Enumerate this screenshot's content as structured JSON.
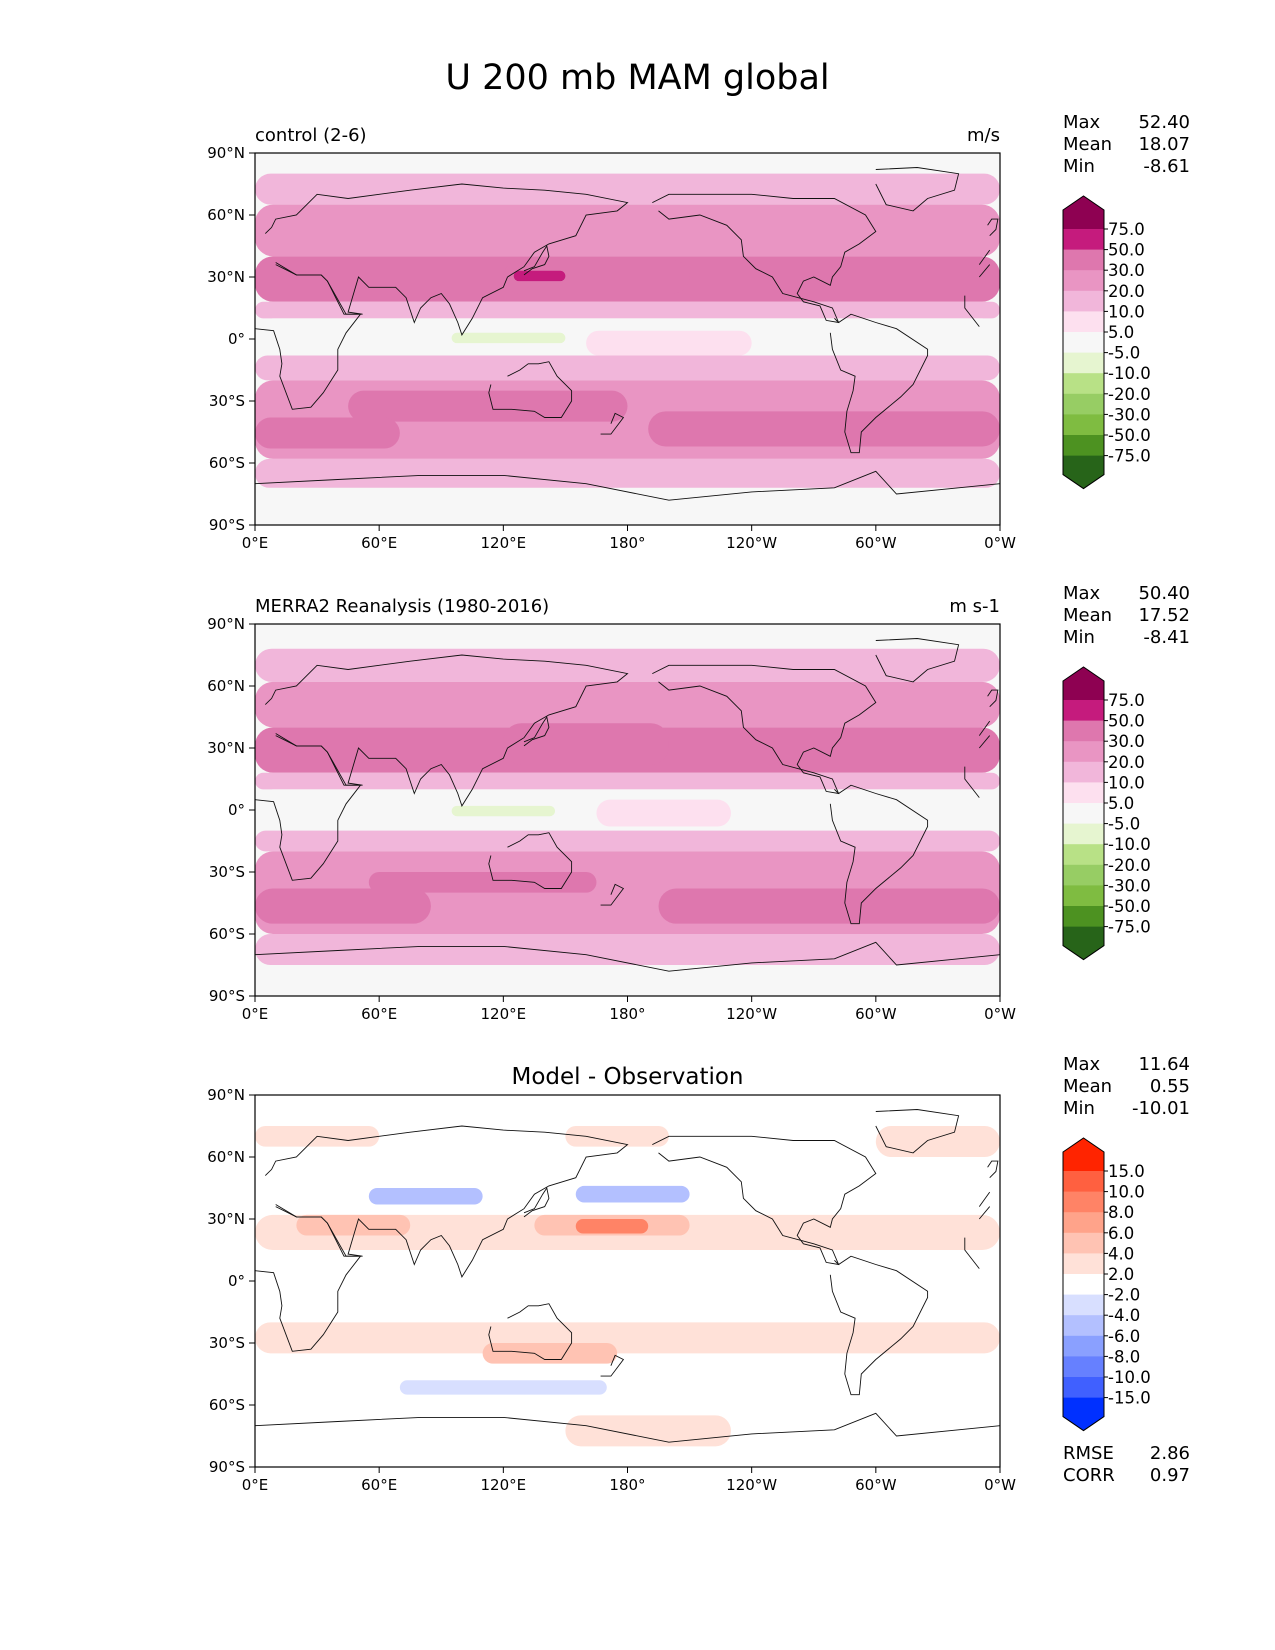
{
  "title": "U 200 mb MAM global",
  "axes": {
    "lat_ticks": [
      "90°N",
      "60°N",
      "30°N",
      "0°",
      "30°S",
      "60°S",
      "90°S"
    ],
    "lon_ticks": [
      "0°E",
      "60°E",
      "120°E",
      "180°",
      "120°W",
      "60°W",
      "0°W"
    ]
  },
  "chart_data": [
    {
      "type": "heatmap",
      "title_left": "control (2-6)",
      "title_right": "m/s",
      "stats": {
        "labels": [
          "Max",
          "Mean",
          "Min"
        ],
        "values": [
          "52.40",
          "18.07",
          "-8.61"
        ]
      },
      "colorbar": {
        "levels": [
          "75.0",
          "50.0",
          "30.0",
          "20.0",
          "10.0",
          "5.0",
          "-5.0",
          "-10.0",
          "-20.0",
          "-30.0",
          "-50.0",
          "-75.0"
        ],
        "colors": [
          "#8e0152",
          "#c51b7d",
          "#de77ae",
          "#e995c3",
          "#f1b6da",
          "#fde0ef",
          "#f7f7f7",
          "#e6f5d0",
          "#b8e186",
          "#97cd64",
          "#7fbc41",
          "#4d9221",
          "#276419"
        ]
      },
      "bands": [
        {
          "lat": [
            65,
            80
          ],
          "lon": [
            0,
            360
          ],
          "level": "10.0"
        },
        {
          "lat": [
            40,
            65
          ],
          "lon": [
            0,
            360
          ],
          "level": "20.0"
        },
        {
          "lat": [
            18,
            40
          ],
          "lon": [
            0,
            360
          ],
          "level": "30.0"
        },
        {
          "lat": [
            10,
            18
          ],
          "lon": [
            0,
            360
          ],
          "level": "10.0"
        },
        {
          "lat": [
            -8,
            10
          ],
          "lon": [
            0,
            360
          ],
          "level": "-5.0"
        },
        {
          "lat": [
            -20,
            -8
          ],
          "lon": [
            0,
            360
          ],
          "level": "10.0"
        },
        {
          "lat": [
            -58,
            -20
          ],
          "lon": [
            0,
            360
          ],
          "level": "20.0"
        },
        {
          "lat": [
            -40,
            -25
          ],
          "lon": [
            45,
            180
          ],
          "level": "30.0"
        },
        {
          "lat": [
            -53,
            -38
          ],
          "lon": [
            0,
            70
          ],
          "level": "30.0"
        },
        {
          "lat": [
            -52,
            -35
          ],
          "lon": [
            190,
            360
          ],
          "level": "30.0"
        },
        {
          "lat": [
            -72,
            -58
          ],
          "lon": [
            0,
            360
          ],
          "level": "10.0"
        },
        {
          "lat": [
            22,
            38
          ],
          "lon": [
            120,
            210
          ],
          "level": "30.0"
        },
        {
          "lat": [
            28,
            33
          ],
          "lon": [
            125,
            150
          ],
          "level": "50.0"
        },
        {
          "lat": [
            -2,
            3
          ],
          "lon": [
            95,
            150
          ],
          "level": "-10.0"
        },
        {
          "lat": [
            -8,
            4
          ],
          "lon": [
            160,
            240
          ],
          "level": "5.0"
        }
      ]
    },
    {
      "type": "heatmap",
      "title_left": "MERRA2 Reanalysis (1980-2016)",
      "title_right": "m s-1",
      "stats": {
        "labels": [
          "Max",
          "Mean",
          "Min"
        ],
        "values": [
          "50.40",
          "17.52",
          "-8.41"
        ]
      },
      "colorbar": {
        "levels": [
          "75.0",
          "50.0",
          "30.0",
          "20.0",
          "10.0",
          "5.0",
          "-5.0",
          "-10.0",
          "-20.0",
          "-30.0",
          "-50.0",
          "-75.0"
        ],
        "colors": [
          "#8e0152",
          "#c51b7d",
          "#de77ae",
          "#e995c3",
          "#f1b6da",
          "#fde0ef",
          "#f7f7f7",
          "#e6f5d0",
          "#b8e186",
          "#97cd64",
          "#7fbc41",
          "#4d9221",
          "#276419"
        ]
      },
      "bands": [
        {
          "lat": [
            62,
            78
          ],
          "lon": [
            0,
            360
          ],
          "level": "10.0"
        },
        {
          "lat": [
            40,
            62
          ],
          "lon": [
            0,
            360
          ],
          "level": "20.0"
        },
        {
          "lat": [
            18,
            40
          ],
          "lon": [
            0,
            360
          ],
          "level": "30.0"
        },
        {
          "lat": [
            10,
            18
          ],
          "lon": [
            0,
            360
          ],
          "level": "10.0"
        },
        {
          "lat": [
            -10,
            10
          ],
          "lon": [
            0,
            360
          ],
          "level": "-5.0"
        },
        {
          "lat": [
            -20,
            -10
          ],
          "lon": [
            0,
            360
          ],
          "level": "10.0"
        },
        {
          "lat": [
            -60,
            -20
          ],
          "lon": [
            0,
            360
          ],
          "level": "20.0"
        },
        {
          "lat": [
            -40,
            -30
          ],
          "lon": [
            55,
            165
          ],
          "level": "30.0"
        },
        {
          "lat": [
            -55,
            -38
          ],
          "lon": [
            0,
            85
          ],
          "level": "30.0"
        },
        {
          "lat": [
            -55,
            -38
          ],
          "lon": [
            195,
            360
          ],
          "level": "30.0"
        },
        {
          "lat": [
            -75,
            -60
          ],
          "lon": [
            0,
            360
          ],
          "level": "10.0"
        },
        {
          "lat": [
            22,
            42
          ],
          "lon": [
            120,
            200
          ],
          "level": "30.0"
        },
        {
          "lat": [
            -3,
            2
          ],
          "lon": [
            95,
            145
          ],
          "level": "-10.0"
        },
        {
          "lat": [
            -8,
            5
          ],
          "lon": [
            165,
            230
          ],
          "level": "5.0"
        }
      ]
    },
    {
      "type": "heatmap",
      "title_center": "Model - Observation",
      "stats": {
        "labels": [
          "Max",
          "Mean",
          "Min"
        ],
        "values": [
          "11.64",
          "0.55",
          "-10.01"
        ]
      },
      "colorbar": {
        "levels": [
          "15.0",
          "10.0",
          "8.0",
          "6.0",
          "4.0",
          "2.0",
          "-2.0",
          "-4.0",
          "-6.0",
          "-8.0",
          "-10.0",
          "-15.0"
        ],
        "colors": [
          "#ff2400",
          "#ff6040",
          "#ff8366",
          "#ffa38a",
          "#ffc3b3",
          "#ffe1d8",
          "#ffffff",
          "#d8dfff",
          "#b3c0ff",
          "#8aa0ff",
          "#6680ff",
          "#4060ff",
          "#0030ff"
        ]
      },
      "bands": [
        {
          "lat": [
            65,
            75
          ],
          "lon": [
            0,
            60
          ],
          "level": "2.0"
        },
        {
          "lat": [
            65,
            75
          ],
          "lon": [
            150,
            200
          ],
          "level": "2.0"
        },
        {
          "lat": [
            60,
            75
          ],
          "lon": [
            300,
            360
          ],
          "level": "2.0"
        },
        {
          "lat": [
            35,
            48
          ],
          "lon": [
            25,
            130
          ],
          "level": "-2.0"
        },
        {
          "lat": [
            37,
            45
          ],
          "lon": [
            55,
            110
          ],
          "level": "-6.0"
        },
        {
          "lat": [
            35,
            50
          ],
          "lon": [
            140,
            230
          ],
          "level": "-2.0"
        },
        {
          "lat": [
            38,
            46
          ],
          "lon": [
            155,
            210
          ],
          "level": "-6.0"
        },
        {
          "lat": [
            38,
            48
          ],
          "lon": [
            295,
            360
          ],
          "level": "-2.0"
        },
        {
          "lat": [
            15,
            32
          ],
          "lon": [
            0,
            360
          ],
          "level": "2.0"
        },
        {
          "lat": [
            22,
            32
          ],
          "lon": [
            20,
            75
          ],
          "level": "4.0"
        },
        {
          "lat": [
            22,
            32
          ],
          "lon": [
            135,
            210
          ],
          "level": "4.0"
        },
        {
          "lat": [
            23,
            30
          ],
          "lon": [
            155,
            190
          ],
          "level": "8.0"
        },
        {
          "lat": [
            -10,
            10
          ],
          "lon": [
            0,
            360
          ],
          "level": "-2.0"
        },
        {
          "lat": [
            5,
            12
          ],
          "lon": [
            140,
            180
          ],
          "level": "-2.0"
        },
        {
          "lat": [
            -35,
            -20
          ],
          "lon": [
            0,
            360
          ],
          "level": "2.0"
        },
        {
          "lat": [
            -40,
            -30
          ],
          "lon": [
            110,
            175
          ],
          "level": "4.0"
        },
        {
          "lat": [
            -60,
            -45
          ],
          "lon": [
            0,
            360
          ],
          "level": "-2.0"
        },
        {
          "lat": [
            -55,
            -48
          ],
          "lon": [
            70,
            170
          ],
          "level": "-4.0"
        },
        {
          "lat": [
            -80,
            -65
          ],
          "lon": [
            150,
            230
          ],
          "level": "2.0"
        }
      ],
      "metrics": {
        "labels": [
          "RMSE",
          "CORR"
        ],
        "values": [
          "2.86",
          "0.97"
        ]
      }
    }
  ]
}
